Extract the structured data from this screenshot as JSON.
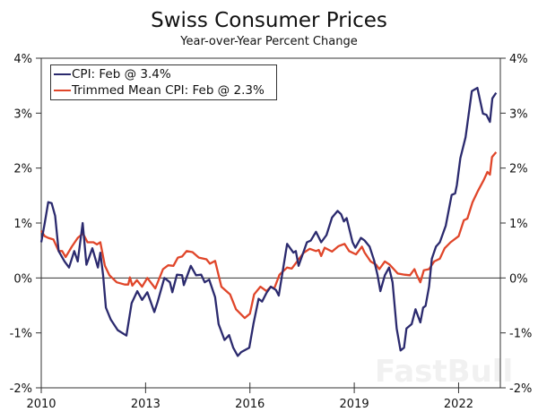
{
  "chart_data": {
    "type": "line",
    "title": "Swiss Consumer Prices",
    "subtitle": "Year-over-Year Percent Change",
    "xlabel": "",
    "ylabel": "",
    "xlim": [
      2010,
      2023.2
    ],
    "ylim": [
      -2,
      4
    ],
    "x_ticks": [
      "2010",
      "2013",
      "2016",
      "2019",
      "2022"
    ],
    "x_tick_values": [
      2010,
      2013,
      2016,
      2019,
      2022
    ],
    "y_ticks": [
      "-2%",
      "-1%",
      "0%",
      "1%",
      "2%",
      "3%",
      "4%"
    ],
    "y_tick_values": [
      -2,
      -1,
      0,
      1,
      2,
      3,
      4
    ],
    "grid": false,
    "zero_line": true,
    "legend_position": "top-left",
    "series": [
      {
        "name": "CPI: Feb @ 3.4%",
        "color": "#2b2a6e",
        "x": [
          2010.0,
          2010.1,
          2010.2,
          2010.3,
          2010.4,
          2010.5,
          2010.67,
          2010.8,
          2010.95,
          2011.05,
          2011.19,
          2011.3,
          2011.47,
          2011.63,
          2011.7,
          2011.78,
          2011.86,
          2012.0,
          2012.2,
          2012.45,
          2012.6,
          2012.76,
          2012.9,
          2013.05,
          2013.25,
          2013.35,
          2013.54,
          2013.7,
          2013.77,
          2013.9,
          2014.05,
          2014.1,
          2014.3,
          2014.45,
          2014.6,
          2014.7,
          2014.83,
          2015.0,
          2015.1,
          2015.27,
          2015.4,
          2015.52,
          2015.65,
          2015.75,
          2015.98,
          2016.1,
          2016.25,
          2016.35,
          2016.48,
          2016.6,
          2016.75,
          2016.83,
          2017.07,
          2017.25,
          2017.32,
          2017.4,
          2017.64,
          2017.75,
          2017.9,
          2018.05,
          2018.2,
          2018.36,
          2018.52,
          2018.62,
          2018.7,
          2018.78,
          2018.95,
          2019.03,
          2019.19,
          2019.3,
          2019.44,
          2019.57,
          2019.67,
          2019.75,
          2019.88,
          2020.0,
          2020.1,
          2020.22,
          2020.33,
          2020.43,
          2020.5,
          2020.65,
          2020.76,
          2020.9,
          2020.98,
          2021.05,
          2021.15,
          2021.23,
          2021.35,
          2021.46,
          2021.63,
          2021.8,
          2021.9,
          2021.95,
          2022.05,
          2022.2,
          2022.38,
          2022.54,
          2022.7,
          2022.8,
          2022.9,
          2022.97,
          2023.08
        ],
        "y": [
          0.65,
          1.0,
          1.38,
          1.36,
          1.13,
          0.49,
          0.3,
          0.19,
          0.49,
          0.3,
          1.0,
          0.24,
          0.54,
          0.19,
          0.46,
          0.05,
          -0.54,
          -0.76,
          -0.95,
          -1.05,
          -0.46,
          -0.24,
          -0.4,
          -0.26,
          -0.62,
          -0.43,
          0.0,
          -0.08,
          -0.26,
          0.06,
          0.05,
          -0.13,
          0.22,
          0.05,
          0.06,
          -0.08,
          -0.03,
          -0.35,
          -0.84,
          -1.13,
          -1.04,
          -1.27,
          -1.42,
          -1.35,
          -1.27,
          -0.84,
          -0.38,
          -0.43,
          -0.27,
          -0.16,
          -0.22,
          -0.32,
          0.62,
          0.46,
          0.49,
          0.22,
          0.65,
          0.68,
          0.84,
          0.65,
          0.78,
          1.1,
          1.22,
          1.16,
          1.03,
          1.09,
          0.65,
          0.55,
          0.73,
          0.68,
          0.57,
          0.32,
          0.05,
          -0.24,
          0.05,
          0.19,
          -0.08,
          -0.92,
          -1.32,
          -1.27,
          -0.92,
          -0.84,
          -0.57,
          -0.81,
          -0.54,
          -0.51,
          -0.16,
          0.35,
          0.57,
          0.65,
          0.95,
          1.51,
          1.54,
          1.69,
          2.18,
          2.56,
          3.4,
          3.46,
          2.99,
          2.97,
          2.84,
          3.27,
          3.37
        ]
      },
      {
        "name": "Trimmed Mean CPI: Feb @ 2.3%",
        "color": "#e0462a",
        "x": [
          2010.0,
          2010.1,
          2010.2,
          2010.35,
          2010.5,
          2010.6,
          2010.7,
          2010.88,
          2011.05,
          2011.2,
          2011.33,
          2011.5,
          2011.6,
          2011.7,
          2011.83,
          2011.96,
          2012.17,
          2012.4,
          2012.5,
          2012.55,
          2012.62,
          2012.75,
          2012.9,
          2013.05,
          2013.28,
          2013.5,
          2013.65,
          2013.8,
          2013.93,
          2014.05,
          2014.18,
          2014.35,
          2014.53,
          2014.75,
          2014.85,
          2015.0,
          2015.18,
          2015.43,
          2015.6,
          2015.85,
          2016.0,
          2016.12,
          2016.3,
          2016.48,
          2016.6,
          2016.7,
          2016.85,
          2017.07,
          2017.2,
          2017.38,
          2017.55,
          2017.72,
          2017.9,
          2017.98,
          2018.05,
          2018.15,
          2018.36,
          2018.55,
          2018.72,
          2018.85,
          2019.05,
          2019.22,
          2019.3,
          2019.47,
          2019.63,
          2019.72,
          2019.88,
          2020.02,
          2020.25,
          2020.45,
          2020.6,
          2020.73,
          2020.8,
          2020.9,
          2021.0,
          2021.15,
          2021.3,
          2021.46,
          2021.6,
          2021.77,
          2022.0,
          2022.15,
          2022.25,
          2022.4,
          2022.56,
          2022.72,
          2022.83,
          2022.9,
          2022.96,
          2023.08
        ],
        "y": [
          0.86,
          0.76,
          0.73,
          0.7,
          0.49,
          0.49,
          0.38,
          0.57,
          0.73,
          0.81,
          0.65,
          0.65,
          0.61,
          0.65,
          0.22,
          0.05,
          -0.08,
          -0.12,
          -0.12,
          0.01,
          -0.14,
          -0.04,
          -0.16,
          0.0,
          -0.19,
          0.16,
          0.23,
          0.22,
          0.37,
          0.39,
          0.49,
          0.47,
          0.37,
          0.34,
          0.26,
          0.31,
          -0.16,
          -0.3,
          -0.57,
          -0.73,
          -0.65,
          -0.3,
          -0.16,
          -0.24,
          -0.16,
          -0.19,
          0.06,
          0.19,
          0.17,
          0.32,
          0.46,
          0.53,
          0.49,
          0.51,
          0.4,
          0.55,
          0.48,
          0.58,
          0.62,
          0.49,
          0.43,
          0.57,
          0.46,
          0.3,
          0.24,
          0.16,
          0.3,
          0.24,
          0.08,
          0.06,
          0.05,
          0.16,
          0.05,
          -0.08,
          0.14,
          0.16,
          0.3,
          0.35,
          0.54,
          0.65,
          0.76,
          1.05,
          1.08,
          1.38,
          1.59,
          1.78,
          1.93,
          1.88,
          2.2,
          2.29
        ]
      }
    ]
  },
  "watermark": "FastBull"
}
